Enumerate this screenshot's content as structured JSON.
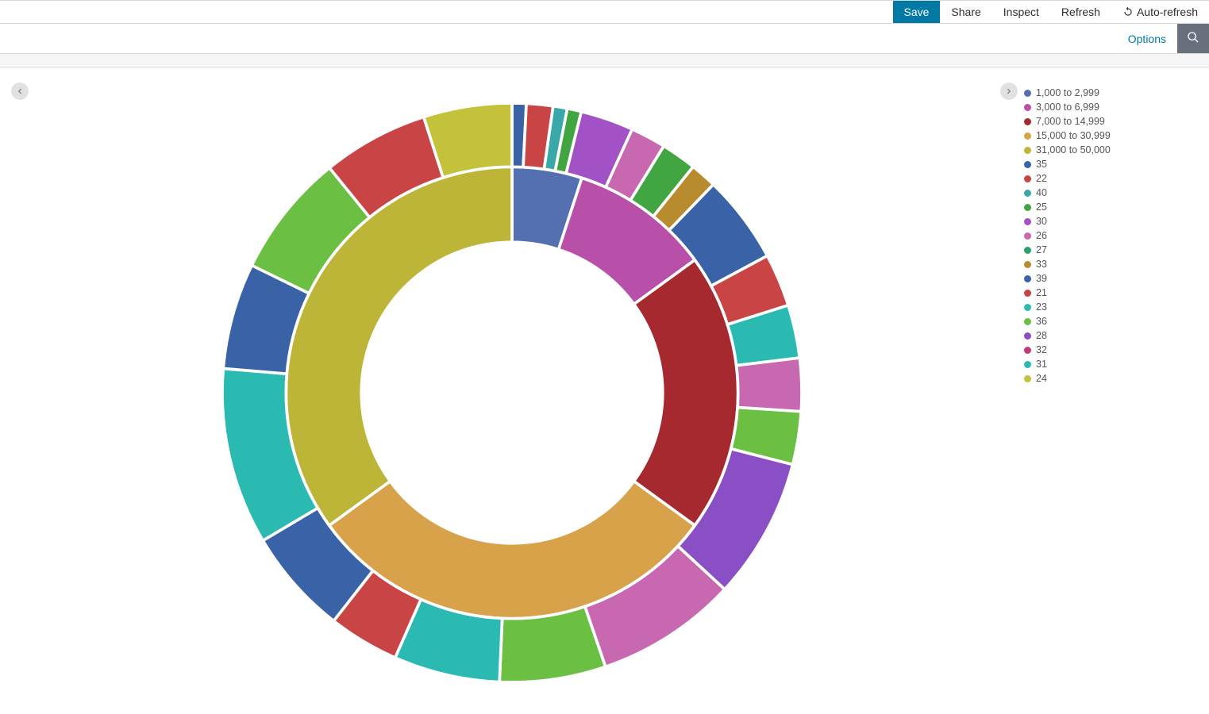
{
  "toolbar": {
    "save": "Save",
    "share": "Share",
    "inspect": "Inspect",
    "refresh": "Refresh",
    "autorefresh": "Auto-refresh"
  },
  "subbar": {
    "options": "Options"
  },
  "colors": {
    "toolbar_primary_bg": "#0079a5",
    "link": "#0079a5",
    "search_btn_bg": "#69707d",
    "band_bg": "#f5f5f5",
    "border": "#d9d9d9",
    "arrow_bg": "#e1e1e1"
  },
  "chart": {
    "type": "donut-2ring",
    "background_color": "#ffffff",
    "stroke_color": "#ffffff",
    "stroke_width": 2,
    "inner_ring": {
      "inner_radius_pct": 52,
      "outer_radius_pct": 78,
      "slices": [
        {
          "label": "1,000 to 2,999",
          "value": 5,
          "color": "#5470b0"
        },
        {
          "label": "3,000 to 6,999",
          "value": 10,
          "color": "#b84fa8"
        },
        {
          "label": "7,000 to 14,999",
          "value": 20,
          "color": "#a6292f"
        },
        {
          "label": "15,000 to 30,999",
          "value": 30,
          "color": "#d8a24a"
        },
        {
          "label": "31,000 to 50,000",
          "value": 35,
          "color": "#bdb537"
        }
      ]
    },
    "outer_ring": {
      "inner_radius_pct": 78,
      "outer_radius_pct": 100,
      "slices": [
        {
          "label": "35",
          "value": 0.8,
          "color": "#3a62a6"
        },
        {
          "label": "22",
          "value": 1.5,
          "color": "#c94545"
        },
        {
          "label": "40",
          "value": 0.8,
          "color": "#3aa8a8"
        },
        {
          "label": "25",
          "value": 0.8,
          "color": "#41a641"
        },
        {
          "label": "30",
          "value": 3.0,
          "color": "#a252c4"
        },
        {
          "label": "26",
          "value": 2.0,
          "color": "#c768b1"
        },
        {
          "label": "27",
          "value": 2.0,
          "color": "#41a641"
        },
        {
          "label": "33",
          "value": 1.5,
          "color": "#b88b2f"
        },
        {
          "label": "39",
          "value": 5.0,
          "color": "#3a62a6"
        },
        {
          "label": "21",
          "value": 3.0,
          "color": "#c94545"
        },
        {
          "label": "23",
          "value": 3.0,
          "color": "#2bbab2"
        },
        {
          "label": "36",
          "value": 3.0,
          "color": "#c768b1"
        },
        {
          "label": "28",
          "value": 3.0,
          "color": "#6bbf42"
        },
        {
          "label": "32",
          "value": 8.0,
          "color": "#8a4fc4"
        },
        {
          "label": "31",
          "value": 8.0,
          "color": "#c768b1"
        },
        {
          "label": "24",
          "value": 6.0,
          "color": "#6bbf42"
        },
        {
          "label": "35",
          "value": 6.0,
          "color": "#2bbab2"
        },
        {
          "label": "22",
          "value": 4.0,
          "color": "#c94545"
        },
        {
          "label": "40",
          "value": 6.0,
          "color": "#3a62a6"
        },
        {
          "label": "25",
          "value": 10.0,
          "color": "#2bbab2"
        },
        {
          "label": "30",
          "value": 6.0,
          "color": "#3a62a6"
        },
        {
          "label": "26",
          "value": 7.0,
          "color": "#6bbf42"
        },
        {
          "label": "27",
          "value": 6.0,
          "color": "#c94545"
        },
        {
          "label": "33",
          "value": 5.0,
          "color": "#c4c23a"
        }
      ]
    }
  },
  "legend": [
    {
      "label": "1,000 to 2,999",
      "color": "#5470b0"
    },
    {
      "label": "3,000 to 6,999",
      "color": "#b84fa8"
    },
    {
      "label": "7,000 to 14,999",
      "color": "#a6292f"
    },
    {
      "label": "15,000 to 30,999",
      "color": "#d8a24a"
    },
    {
      "label": "31,000 to 50,000",
      "color": "#bdb537"
    },
    {
      "label": "35",
      "color": "#3a62a6"
    },
    {
      "label": "22",
      "color": "#c94545"
    },
    {
      "label": "40",
      "color": "#3aa8a8"
    },
    {
      "label": "25",
      "color": "#41a641"
    },
    {
      "label": "30",
      "color": "#a252c4"
    },
    {
      "label": "26",
      "color": "#c768b1"
    },
    {
      "label": "27",
      "color": "#2ea06a"
    },
    {
      "label": "33",
      "color": "#b88b2f"
    },
    {
      "label": "39",
      "color": "#3a62a6"
    },
    {
      "label": "21",
      "color": "#c94545"
    },
    {
      "label": "23",
      "color": "#2bbab2"
    },
    {
      "label": "36",
      "color": "#6bbf42"
    },
    {
      "label": "28",
      "color": "#8a4fc4"
    },
    {
      "label": "32",
      "color": "#c23a7a"
    },
    {
      "label": "31",
      "color": "#2bbab2"
    },
    {
      "label": "24",
      "color": "#c4c23a"
    }
  ]
}
